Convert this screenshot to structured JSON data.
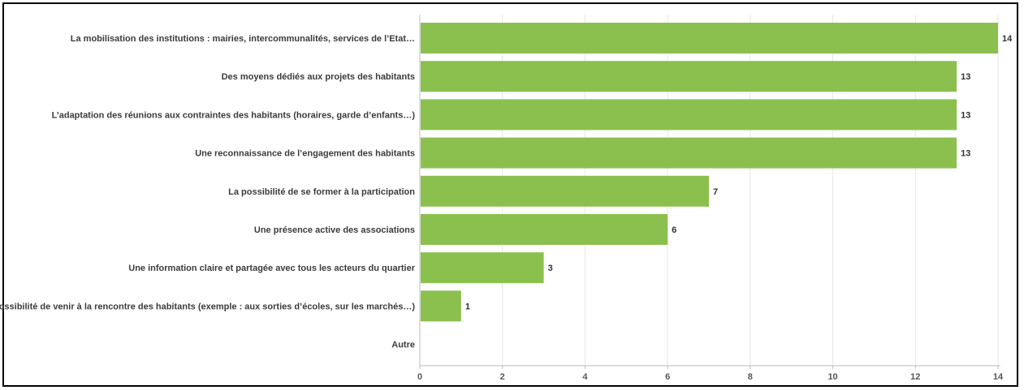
{
  "chart_data": {
    "type": "bar",
    "orientation": "horizontal",
    "categories": [
      "La mobilisation des institutions : mairies, intercommunalités, services de l’Etat…",
      "Des moyens dédiés aux projets des habitants",
      "L’adaptation des réunions aux contraintes des habitants (horaires, garde d’enfants…)",
      "Une reconnaissance de l’engagement des habitants",
      "La possibilité de se former à la participation",
      "Une présence active des associations",
      "Une information claire et partagée avec tous les acteurs du quartier",
      "La possibilité de venir à la rencontre des habitants (exemple : aux sorties d’écoles, sur les marchés…)",
      "Autre"
    ],
    "values": [
      14,
      13,
      13,
      13,
      7,
      6,
      3,
      1,
      0
    ],
    "xlim": [
      0,
      14
    ],
    "xticks": [
      0,
      2,
      4,
      6,
      8,
      10,
      12,
      14
    ],
    "grid": true,
    "data_labels": true,
    "bar_color": "#8bc04f"
  }
}
